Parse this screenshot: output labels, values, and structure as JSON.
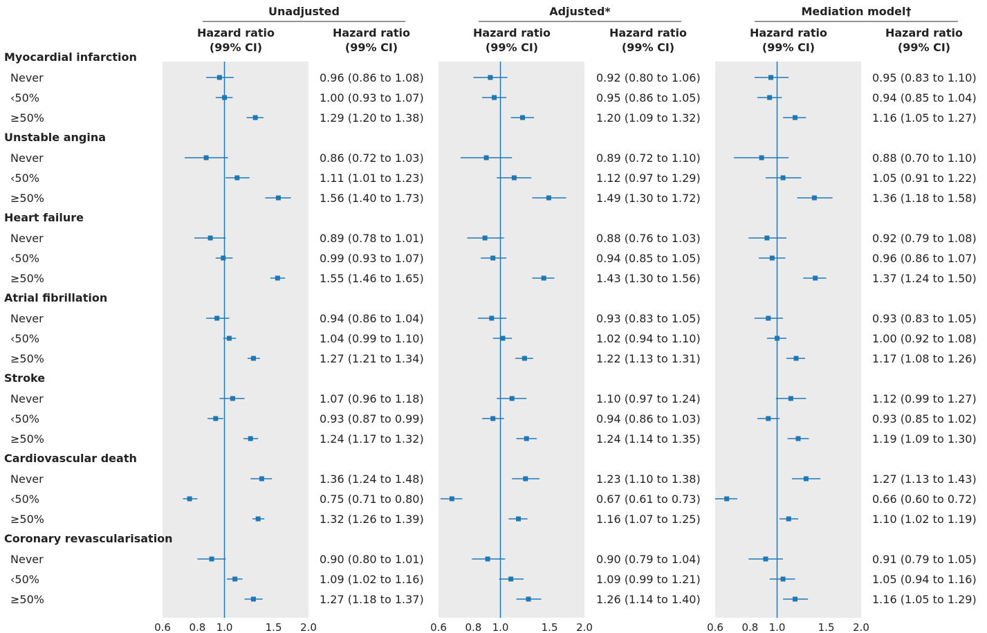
{
  "chart_data": {
    "type": "forest",
    "x_scale": "log",
    "xlim": [
      0.6,
      2.0
    ],
    "reference_line": 1.0,
    "x_ticks": [
      0.6,
      0.8,
      1.0,
      1.5,
      2.0
    ],
    "x_tick_labels": [
      "0.6",
      "0.8",
      "1.0",
      "1.5",
      "2.0"
    ],
    "grid": false,
    "panels": [
      {
        "title": "Unadjusted",
        "plot_header": "Hazard ratio\n(99% CI)",
        "text_header": "Hazard ratio\n(99% CI)"
      },
      {
        "title": "Adjusted*",
        "plot_header": "Hazard ratio\n(99% CI)",
        "text_header": "Hazard ratio\n(99% CI)"
      },
      {
        "title": "Mediation model†",
        "plot_header": "Hazard ratio\n(99% CI)",
        "text_header": "Hazard ratio\n(99% CI)"
      }
    ],
    "groups": [
      {
        "name": "Myocardial infarction",
        "rows": [
          {
            "label": "Never",
            "values": [
              [
                0.96,
                0.86,
                1.08
              ],
              [
                0.92,
                0.8,
                1.06
              ],
              [
                0.95,
                0.83,
                1.1
              ]
            ],
            "texts": [
              "0.96 (0.86 to 1.08)",
              "0.92 (0.80 to 1.06)",
              "0.95 (0.83 to 1.10)"
            ]
          },
          {
            "label": "‹50%",
            "values": [
              [
                1.0,
                0.93,
                1.07
              ],
              [
                0.95,
                0.86,
                1.05
              ],
              [
                0.94,
                0.85,
                1.04
              ]
            ],
            "texts": [
              "1.00 (0.93 to 1.07)",
              "0.95 (0.86 to 1.05)",
              "0.94 (0.85 to 1.04)"
            ]
          },
          {
            "label": "≥50%",
            "values": [
              [
                1.29,
                1.2,
                1.38
              ],
              [
                1.2,
                1.09,
                1.32
              ],
              [
                1.16,
                1.05,
                1.27
              ]
            ],
            "texts": [
              "1.29 (1.20 to 1.38)",
              "1.20 (1.09 to 1.32)",
              "1.16 (1.05 to 1.27)"
            ]
          }
        ]
      },
      {
        "name": "Unstable angina",
        "rows": [
          {
            "label": "Never",
            "values": [
              [
                0.86,
                0.72,
                1.03
              ],
              [
                0.89,
                0.72,
                1.1
              ],
              [
                0.88,
                0.7,
                1.1
              ]
            ],
            "texts": [
              "0.86 (0.72 to 1.03)",
              "0.89 (0.72 to 1.10)",
              "0.88 (0.70 to 1.10)"
            ]
          },
          {
            "label": "‹50%",
            "values": [
              [
                1.11,
                1.01,
                1.23
              ],
              [
                1.12,
                0.97,
                1.29
              ],
              [
                1.05,
                0.91,
                1.22
              ]
            ],
            "texts": [
              "1.11 (1.01 to 1.23)",
              "1.12 (0.97 to 1.29)",
              "1.05 (0.91 to 1.22)"
            ]
          },
          {
            "label": "≥50%",
            "values": [
              [
                1.56,
                1.4,
                1.73
              ],
              [
                1.49,
                1.3,
                1.72
              ],
              [
                1.36,
                1.18,
                1.58
              ]
            ],
            "texts": [
              "1.56 (1.40 to 1.73)",
              "1.49 (1.30 to 1.72)",
              "1.36 (1.18 to 1.58)"
            ]
          }
        ]
      },
      {
        "name": "Heart failure",
        "rows": [
          {
            "label": "Never",
            "values": [
              [
                0.89,
                0.78,
                1.01
              ],
              [
                0.88,
                0.76,
                1.03
              ],
              [
                0.92,
                0.79,
                1.08
              ]
            ],
            "texts": [
              "0.89 (0.78 to 1.01)",
              "0.88 (0.76 to 1.03)",
              "0.92 (0.79 to 1.08)"
            ]
          },
          {
            "label": "‹50%",
            "values": [
              [
                0.99,
                0.93,
                1.07
              ],
              [
                0.94,
                0.85,
                1.05
              ],
              [
                0.96,
                0.86,
                1.07
              ]
            ],
            "texts": [
              "0.99 (0.93 to 1.07)",
              "0.94 (0.85 to 1.05)",
              "0.96 (0.86 to 1.07)"
            ]
          },
          {
            "label": "≥50%",
            "values": [
              [
                1.55,
                1.46,
                1.65
              ],
              [
                1.43,
                1.3,
                1.56
              ],
              [
                1.37,
                1.24,
                1.5
              ]
            ],
            "texts": [
              "1.55 (1.46 to 1.65)",
              "1.43 (1.30 to 1.56)",
              "1.37 (1.24 to 1.50)"
            ]
          }
        ]
      },
      {
        "name": "Atrial fibrillation",
        "rows": [
          {
            "label": "Never",
            "values": [
              [
                0.94,
                0.86,
                1.04
              ],
              [
                0.93,
                0.83,
                1.05
              ],
              [
                0.93,
                0.83,
                1.05
              ]
            ],
            "texts": [
              "0.94 (0.86 to 1.04)",
              "0.93 (0.83 to 1.05)",
              "0.93 (0.83 to 1.05)"
            ]
          },
          {
            "label": "‹50%",
            "values": [
              [
                1.04,
                0.99,
                1.1
              ],
              [
                1.02,
                0.94,
                1.1
              ],
              [
                1.0,
                0.92,
                1.08
              ]
            ],
            "texts": [
              "1.04 (0.99 to 1.10)",
              "1.02 (0.94 to 1.10)",
              "1.00 (0.92 to 1.08)"
            ]
          },
          {
            "label": "≥50%",
            "values": [
              [
                1.27,
                1.21,
                1.34
              ],
              [
                1.22,
                1.13,
                1.31
              ],
              [
                1.17,
                1.08,
                1.26
              ]
            ],
            "texts": [
              "1.27 (1.21 to 1.34)",
              "1.22 (1.13 to 1.31)",
              "1.17 (1.08 to 1.26)"
            ]
          }
        ]
      },
      {
        "name": "Stroke",
        "rows": [
          {
            "label": "Never",
            "values": [
              [
                1.07,
                0.96,
                1.18
              ],
              [
                1.1,
                0.97,
                1.24
              ],
              [
                1.12,
                0.99,
                1.27
              ]
            ],
            "texts": [
              "1.07 (0.96 to 1.18)",
              "1.10 (0.97 to 1.24)",
              "1.12 (0.99 to 1.27)"
            ]
          },
          {
            "label": "‹50%",
            "values": [
              [
                0.93,
                0.87,
                0.99
              ],
              [
                0.94,
                0.86,
                1.03
              ],
              [
                0.93,
                0.85,
                1.02
              ]
            ],
            "texts": [
              "0.93 (0.87 to 0.99)",
              "0.94 (0.86 to 1.03)",
              "0.93 (0.85 to 1.02)"
            ]
          },
          {
            "label": "≥50%",
            "values": [
              [
                1.24,
                1.17,
                1.32
              ],
              [
                1.24,
                1.14,
                1.35
              ],
              [
                1.19,
                1.09,
                1.3
              ]
            ],
            "texts": [
              "1.24 (1.17 to 1.32)",
              "1.24 (1.14 to 1.35)",
              "1.19 (1.09 to 1.30)"
            ]
          }
        ]
      },
      {
        "name": "Cardiovascular death",
        "rows": [
          {
            "label": "Never",
            "values": [
              [
                1.36,
                1.24,
                1.48
              ],
              [
                1.23,
                1.1,
                1.38
              ],
              [
                1.27,
                1.13,
                1.43
              ]
            ],
            "texts": [
              "1.36 (1.24 to 1.48)",
              "1.23 (1.10 to 1.38)",
              "1.27 (1.13 to 1.43)"
            ]
          },
          {
            "label": "‹50%",
            "values": [
              [
                0.75,
                0.71,
                0.8
              ],
              [
                0.67,
                0.61,
                0.73
              ],
              [
                0.66,
                0.6,
                0.72
              ]
            ],
            "texts": [
              "0.75 (0.71 to 0.80)",
              "0.67 (0.61 to 0.73)",
              "0.66 (0.60 to 0.72)"
            ]
          },
          {
            "label": "≥50%",
            "values": [
              [
                1.32,
                1.26,
                1.39
              ],
              [
                1.16,
                1.07,
                1.25
              ],
              [
                1.1,
                1.02,
                1.19
              ]
            ],
            "texts": [
              "1.32 (1.26 to 1.39)",
              "1.16 (1.07 to 1.25)",
              "1.10 (1.02 to 1.19)"
            ]
          }
        ]
      },
      {
        "name": "Coronary revascularisation",
        "rows": [
          {
            "label": "Never",
            "values": [
              [
                0.9,
                0.8,
                1.01
              ],
              [
                0.9,
                0.79,
                1.04
              ],
              [
                0.91,
                0.79,
                1.05
              ]
            ],
            "texts": [
              "0.90 (0.80 to 1.01)",
              "0.90 (0.79 to 1.04)",
              "0.91 (0.79 to 1.05)"
            ]
          },
          {
            "label": "‹50%",
            "values": [
              [
                1.09,
                1.02,
                1.16
              ],
              [
                1.09,
                0.99,
                1.21
              ],
              [
                1.05,
                0.94,
                1.16
              ]
            ],
            "texts": [
              "1.09 (1.02 to 1.16)",
              "1.09 (0.99 to 1.21)",
              "1.05 (0.94 to 1.16)"
            ]
          },
          {
            "label": "≥50%",
            "values": [
              [
                1.27,
                1.18,
                1.37
              ],
              [
                1.26,
                1.14,
                1.4
              ],
              [
                1.16,
                1.05,
                1.29
              ]
            ],
            "texts": [
              "1.27 (1.18 to 1.37)",
              "1.26 (1.14 to 1.40)",
              "1.16 (1.05 to 1.29)"
            ]
          }
        ]
      }
    ]
  },
  "colors": {
    "marker": "#1f77b4",
    "panel_background": "#ebebeb",
    "text": "#222222",
    "header_rule": "#555555"
  }
}
